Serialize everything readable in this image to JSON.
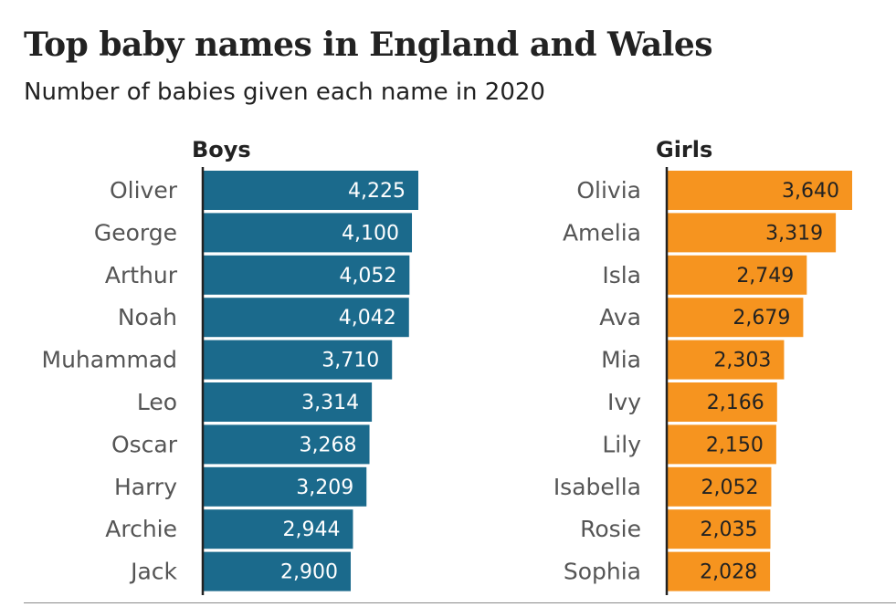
{
  "header": {
    "title": "Top baby names in England and Wales",
    "subtitle": "Number of babies given each name in 2020"
  },
  "colors": {
    "boys": "#1b6a8c",
    "girls": "#f6941f",
    "boys_value_text": "#ffffff",
    "girls_value_text": "#222222",
    "axis": "#222222"
  },
  "chart_data": [
    {
      "type": "bar",
      "orientation": "horizontal",
      "title": "Boys",
      "categories": [
        "Oliver",
        "George",
        "Arthur",
        "Noah",
        "Muhammad",
        "Leo",
        "Oscar",
        "Harry",
        "Archie",
        "Jack"
      ],
      "values": [
        4225,
        4100,
        4052,
        4042,
        3710,
        3314,
        3268,
        3209,
        2944,
        2900
      ],
      "value_labels": [
        "4,225",
        "4,100",
        "4,052",
        "4,042",
        "3,710",
        "3,314",
        "3,268",
        "3,209",
        "2,944",
        "2,900"
      ],
      "xlim": [
        0,
        4225
      ],
      "grid": false
    },
    {
      "type": "bar",
      "orientation": "horizontal",
      "title": "Girls",
      "categories": [
        "Olivia",
        "Amelia",
        "Isla",
        "Ava",
        "Mia",
        "Ivy",
        "Lily",
        "Isabella",
        "Rosie",
        "Sophia"
      ],
      "values": [
        3640,
        3319,
        2749,
        2679,
        2303,
        2166,
        2150,
        2052,
        2035,
        2028
      ],
      "value_labels": [
        "3,640",
        "3,319",
        "2,749",
        "2,679",
        "2,303",
        "2,166",
        "2,150",
        "2,052",
        "2,035",
        "2,028"
      ],
      "xlim": [
        0,
        3640
      ],
      "grid": false
    }
  ]
}
